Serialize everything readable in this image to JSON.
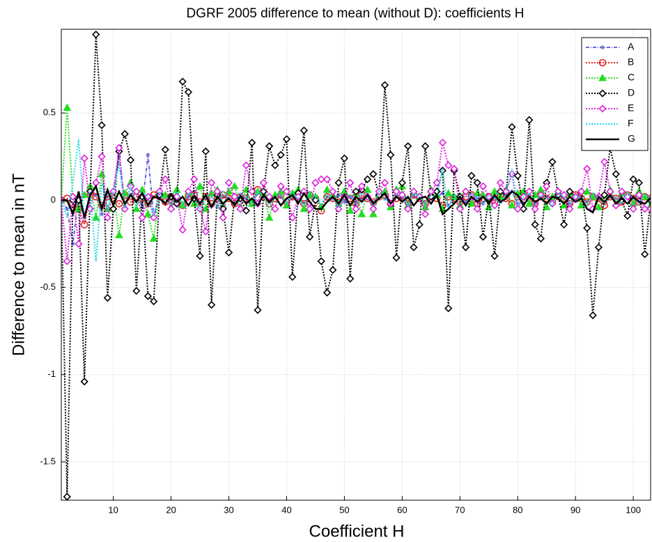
{
  "chart_data": {
    "type": "line",
    "title": "DGRF 2005 difference to mean (without D): coefficients H",
    "x_label": "Coefficient H",
    "y_label": "Difference to mean in nT",
    "xlim": [
      1,
      103
    ],
    "ylim": [
      -1.72,
      0.98
    ],
    "xticks": [
      10,
      20,
      30,
      40,
      50,
      60,
      70,
      80,
      90,
      100
    ],
    "yticks": [
      -1.5,
      -1,
      -0.5,
      0,
      0.5
    ],
    "grid": true,
    "legend": "upper right",
    "x": [
      1,
      2,
      3,
      4,
      5,
      6,
      7,
      8,
      9,
      10,
      11,
      12,
      13,
      14,
      15,
      16,
      17,
      18,
      19,
      20,
      21,
      22,
      23,
      24,
      25,
      26,
      27,
      28,
      29,
      30,
      31,
      32,
      33,
      34,
      35,
      36,
      37,
      38,
      39,
      40,
      41,
      42,
      43,
      44,
      45,
      46,
      47,
      48,
      49,
      50,
      51,
      52,
      53,
      54,
      55,
      56,
      57,
      58,
      59,
      60,
      61,
      62,
      63,
      64,
      65,
      66,
      67,
      68,
      69,
      70,
      71,
      72,
      73,
      74,
      75,
      76,
      77,
      78,
      79,
      80,
      81,
      82,
      83,
      84,
      85,
      86,
      87,
      88,
      89,
      90,
      91,
      92,
      93,
      94,
      95,
      96,
      97,
      98,
      99,
      100,
      101,
      102,
      103
    ],
    "series": [
      {
        "name": "A",
        "color": "#6464d8",
        "line_style": "dashdot",
        "marker": "star",
        "values": [
          0,
          -0.05,
          -0.25,
          0.02,
          -0.1,
          0.05,
          0.03,
          -0.08,
          0.02,
          0.04,
          0.25,
          -0.02,
          0.03,
          0.05,
          -0.04,
          0.26,
          -0.1,
          0.02,
          0.03,
          -0.02,
          0.04,
          -0.03,
          0.02,
          0.05,
          -0.02,
          0.01,
          0.03,
          -0.04,
          0.02,
          0.01,
          -0.02,
          0.03,
          0.01,
          -0.03,
          0.04,
          0.02,
          -0.01,
          0.03,
          0.02,
          -0.02,
          0.01,
          0.03,
          -0.02,
          0.02,
          0.01,
          -0.03,
          0.02,
          0.01,
          0.03,
          -0.01,
          0.02,
          -0.02,
          0.01,
          0.03,
          -0.01,
          0.02,
          0.01,
          -0.02,
          0.03,
          0.01,
          -0.01,
          0.02,
          0.03,
          -0.02,
          0.01,
          0.02,
          0.04,
          -0.03,
          0.01,
          0.02,
          -0.01,
          0.02,
          0.01,
          -0.02,
          0.03,
          0.01,
          -0.01,
          0.02,
          0.05,
          -0.02,
          0.01,
          0.03,
          -0.02,
          0.01,
          0.02,
          -0.01,
          0.03,
          0.01,
          -0.02,
          0.01,
          0.02,
          -0.01,
          0.03,
          0.01,
          -0.02,
          0.02,
          0.01,
          -0.01,
          0.02,
          0.01,
          -0.01,
          0.02,
          0.01
        ]
      },
      {
        "name": "B",
        "color": "#e02020",
        "line_style": "dotted",
        "marker": "circle",
        "values": [
          0,
          0.01,
          -0.02,
          -0.05,
          -0.14,
          0.03,
          0.02,
          -0.03,
          0.02,
          0.01,
          -0.02,
          0.03,
          -0.01,
          0.02,
          0.01,
          -0.02,
          0.03,
          0.02,
          -0.01,
          0.02,
          0.01,
          -0.03,
          0.02,
          0.03,
          -0.01,
          0.02,
          -0.02,
          0.01,
          0.03,
          0.01,
          -0.02,
          0.02,
          0.01,
          -0.01,
          0.06,
          0.02,
          -0.02,
          0.01,
          0.03,
          -0.01,
          0.02,
          0.01,
          -0.02,
          0.03,
          0.01,
          -0.06,
          0.02,
          0.01,
          -0.01,
          0.02,
          0.01,
          -0.02,
          0.03,
          0.01,
          -0.01,
          0.02,
          0.03,
          -0.02,
          0.01,
          0.02,
          -0.01,
          0.03,
          0.01,
          -0.02,
          0.02,
          0.01,
          -0.03,
          0.02,
          0.01,
          -0.01,
          0.02,
          0.03,
          -0.02,
          0.01,
          0.02,
          -0.01,
          0.03,
          0.01,
          -0.02,
          0.02,
          0.04,
          0.01,
          -0.02,
          0.03,
          0.01,
          -0.01,
          0.02,
          0.01,
          -0.02,
          0.03,
          0.01,
          -0.01,
          0.02,
          0.01,
          -0.03,
          0.02,
          0.01,
          -0.01,
          0.03,
          0.01,
          -0.01,
          0.02,
          0.01
        ]
      },
      {
        "name": "C",
        "color": "#22dd22",
        "line_style": "dotted",
        "marker": "triangle",
        "values": [
          0,
          0.53,
          0.02,
          -0.05,
          0.03,
          0.08,
          -0.1,
          0.15,
          -0.05,
          0.05,
          -0.2,
          0.04,
          0.1,
          -0.05,
          0.06,
          -0.08,
          -0.22,
          0.05,
          0.03,
          -0.04,
          0.06,
          -0.03,
          0.05,
          -0.02,
          0.08,
          -0.05,
          0.04,
          0.06,
          -0.03,
          0.05,
          0.08,
          -0.04,
          0.06,
          -0.02,
          0.05,
          0.04,
          -0.1,
          0.03,
          0.05,
          -0.03,
          0.04,
          0.06,
          -0.05,
          0.03,
          0.02,
          -0.04,
          0.06,
          0.03,
          -0.02,
          0.05,
          -0.06,
          0.04,
          -0.08,
          0.06,
          -0.08,
          0.03,
          0.05,
          -0.04,
          0.06,
          0.08,
          -0.03,
          0.05,
          0.02,
          -0.04,
          0.06,
          0.03,
          -0.05,
          0.04,
          0.02,
          -0.03,
          0.05,
          -0.02,
          0.04,
          0.03,
          -0.04,
          0.05,
          0.02,
          0.06,
          -0.03,
          0.04,
          0.05,
          -0.02,
          0.03,
          0.06,
          -0.04,
          0.02,
          0.05,
          -0.03,
          0.04,
          0.02,
          -0.03,
          0.05,
          0.02,
          -0.04,
          0.03,
          0.06,
          -0.02,
          0.04,
          0.03,
          -0.02,
          0.05,
          0.02,
          -0.03
        ]
      },
      {
        "name": "D",
        "color": "#000000",
        "line_style": "dotted",
        "marker": "diamond",
        "values": [
          0,
          -1.7,
          0,
          0,
          -1.04,
          0.05,
          0.95,
          0.43,
          -0.56,
          -0.05,
          0.28,
          0.38,
          0.23,
          -0.52,
          0.02,
          -0.55,
          -0.58,
          0.03,
          0.29,
          0.02,
          -0.02,
          0.68,
          0.62,
          0.01,
          -0.32,
          0.28,
          -0.6,
          0.03,
          -0.05,
          -0.3,
          0.02,
          0.01,
          -0.06,
          0.33,
          -0.63,
          0.05,
          0.31,
          0.2,
          0.26,
          0.35,
          -0.44,
          0.04,
          0.4,
          -0.21,
          0,
          -0.35,
          -0.53,
          -0.4,
          0.1,
          0.24,
          -0.45,
          0.05,
          0.06,
          0.12,
          0.15,
          0.03,
          0.66,
          0.26,
          -0.33,
          0.1,
          0.31,
          -0.27,
          -0.14,
          0.31,
          0.02,
          0.05,
          0.17,
          -0.62,
          0.17,
          0.02,
          -0.27,
          0.14,
          0.1,
          -0.21,
          0.01,
          -0.32,
          0.05,
          0.04,
          0.42,
          0.14,
          -0.05,
          0.46,
          -0.14,
          -0.22,
          0.1,
          0.22,
          0.03,
          -0.14,
          0.05,
          0.02,
          0.05,
          -0.16,
          -0.66,
          -0.27,
          0.03,
          0.3,
          0.15,
          0,
          -0.09,
          0.12,
          0.1,
          -0.31,
          0
        ]
      },
      {
        "name": "E",
        "color": "#e020e0",
        "line_style": "dotted",
        "marker": "diamond",
        "values": [
          0,
          -0.35,
          0.02,
          -0.25,
          0.24,
          -0.05,
          0.1,
          0.25,
          -0.1,
          0.05,
          0.3,
          -0.05,
          0.08,
          0.05,
          -0.1,
          0.02,
          -0.1,
          0.05,
          0.12,
          -0.05,
          0.02,
          -0.17,
          0.05,
          0.12,
          -0.05,
          -0.18,
          0.1,
          0.05,
          -0.1,
          0.1,
          0.02,
          -0.05,
          0.2,
          0.05,
          -0.02,
          0.1,
          0.02,
          -0.05,
          0.08,
          0.05,
          -0.1,
          0.02,
          0.05,
          -0.05,
          0.1,
          0.12,
          0.12,
          0.05,
          -0.05,
          0.02,
          0.1,
          -0.05,
          0.08,
          0.02,
          -0.05,
          0.05,
          0.1,
          -0.02,
          0.05,
          0.03,
          -0.05,
          0.05,
          0.02,
          -0.08,
          0.05,
          0.1,
          0.33,
          0.2,
          0.18,
          -0.05,
          0.05,
          0.02,
          -0.05,
          0.08,
          0.02,
          -0.03,
          0.1,
          0.05,
          0.15,
          -0.05,
          0.02,
          0.05,
          -0.05,
          0.03,
          0.08,
          -0.02,
          0.05,
          0.03,
          -0.05,
          0.02,
          0.05,
          0.18,
          -0.05,
          0.02,
          0.22,
          0.05,
          -0.03,
          0.05,
          0.02,
          -0.05,
          0.03,
          -0.05,
          -0.05
        ]
      },
      {
        "name": "F",
        "color": "#22d8e8",
        "line_style": "dotted",
        "marker": "none",
        "values": [
          0,
          -0.1,
          0.1,
          0.35,
          -0.1,
          0.05,
          -0.35,
          0.1,
          -0.05,
          0.05,
          0.2,
          -0.05,
          0.08,
          -0.03,
          0.05,
          0.02,
          -0.08,
          0.05,
          -0.02,
          0.03,
          0.05,
          -0.03,
          0.04,
          0.02,
          -0.05,
          0.03,
          0.02,
          -0.04,
          0.05,
          0.01,
          -0.03,
          0.04,
          0.02,
          -0.02,
          0.05,
          0.03,
          -0.04,
          0.02,
          0.03,
          -0.02,
          0.04,
          0.01,
          -0.03,
          0.05,
          0.02,
          -0.02,
          0.03,
          0.01,
          -0.04,
          0.02,
          0.03,
          -0.02,
          0.04,
          0.02,
          -0.03,
          0.05,
          0.01,
          -0.02,
          0.03,
          0.02,
          -0.03,
          0.04,
          0.02,
          -0.02,
          0.03,
          0.01,
          0.18,
          -0.05,
          0.03,
          0.02,
          -0.03,
          0.04,
          0.02,
          -0.02,
          0.03,
          0.01,
          -0.02,
          0.04,
          0.18,
          -0.03,
          0.02,
          0.04,
          -0.02,
          0.03,
          0.01,
          -0.03,
          0.04,
          0.02,
          -0.02,
          0.03,
          0.01,
          -0.03,
          0.04,
          0.02,
          -0.02,
          0.03,
          0.01,
          -0.02,
          0.04,
          0.02,
          -0.02,
          0.03,
          0.01
        ]
      },
      {
        "name": "G",
        "color": "#000000",
        "line_style": "solid",
        "marker": "none",
        "values": [
          0,
          0,
          -0.08,
          0.05,
          -0.1,
          0.03,
          0.08,
          -0.05,
          0.06,
          -0.03,
          0.05,
          -0.02,
          0.03,
          -0.01,
          0.04,
          -0.03,
          0.02,
          0.01,
          -0.02,
          0.03,
          -0.01,
          0.02,
          -0.03,
          0.02,
          -0.02,
          0.03,
          -0.04,
          0.02,
          -0.02,
          0.01,
          -0.03,
          0.02,
          -0.02,
          0.01,
          -0.03,
          0.03,
          -0.01,
          0.02,
          -0.03,
          0.01,
          0.03,
          -0.02,
          0.04,
          -0.01,
          -0.05,
          -0.05,
          -0.01,
          0.02,
          -0.02,
          0.03,
          -0.03,
          0.02,
          -0.01,
          0.03,
          -0.02,
          0.01,
          0.04,
          -0.02,
          0.02,
          -0.01,
          0.02,
          -0.03,
          0.01,
          0.02,
          -0.02,
          0.03,
          -0.08,
          -0.05,
          -0.02,
          0.02,
          -0.03,
          0.02,
          -0.01,
          0.02,
          -0.02,
          0.03,
          -0.01,
          0.01,
          0.05,
          0.03,
          -0.03,
          0.02,
          -0.01,
          0.01,
          -0.02,
          0.02,
          0.01,
          -0.02,
          0.02,
          -0.01,
          0.01,
          -0.05,
          -0.07,
          0.02,
          -0.01,
          0.03,
          -0.02,
          0.01,
          -0.02,
          0.02,
          -0.01,
          -0.02,
          0.01
        ]
      }
    ]
  }
}
